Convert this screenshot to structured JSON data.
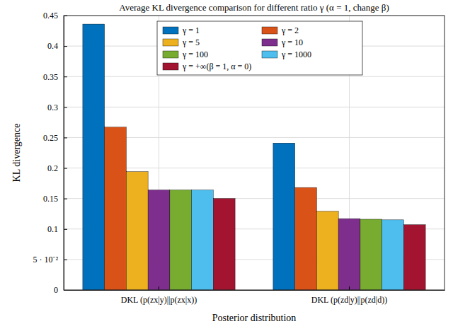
{
  "chart_data": {
    "type": "bar",
    "title": "Average KL divergence comparison for different ratio γ (α = 1, change β)",
    "x_label": "Posterior distribution",
    "y_label": "KL divergence",
    "categories": [
      "DKL (p(zx|y)||p(zx|x))",
      "DKL (p(zd|y)||p(zd|d))"
    ],
    "series": [
      {
        "name": "γ = 1",
        "color": "#0072bd",
        "values": [
          0.436,
          0.241
        ]
      },
      {
        "name": "γ = 2",
        "color": "#d95319",
        "values": [
          0.267,
          0.168
        ]
      },
      {
        "name": "γ = 5",
        "color": "#edb120",
        "values": [
          0.194,
          0.129
        ]
      },
      {
        "name": "γ = 10",
        "color": "#7e2f8e",
        "values": [
          0.164,
          0.117
        ]
      },
      {
        "name": "γ = 100",
        "color": "#77ac30",
        "values": [
          0.164,
          0.116
        ]
      },
      {
        "name": "γ = 1000",
        "color": "#4dbeee",
        "values": [
          0.164,
          0.115
        ]
      },
      {
        "name": "γ = +∞(β = 1, α = 0)",
        "color": "#a2142f",
        "values": [
          0.15,
          0.107
        ]
      }
    ],
    "ylim": [
      0,
      0.45
    ],
    "yticks": [
      0,
      {
        "value": 0.05,
        "label": "5 · 10⁻²"
      },
      0.1,
      0.15,
      0.2,
      0.25,
      0.3,
      0.35,
      0.4,
      0.45
    ],
    "grid": true,
    "legend": "top"
  }
}
